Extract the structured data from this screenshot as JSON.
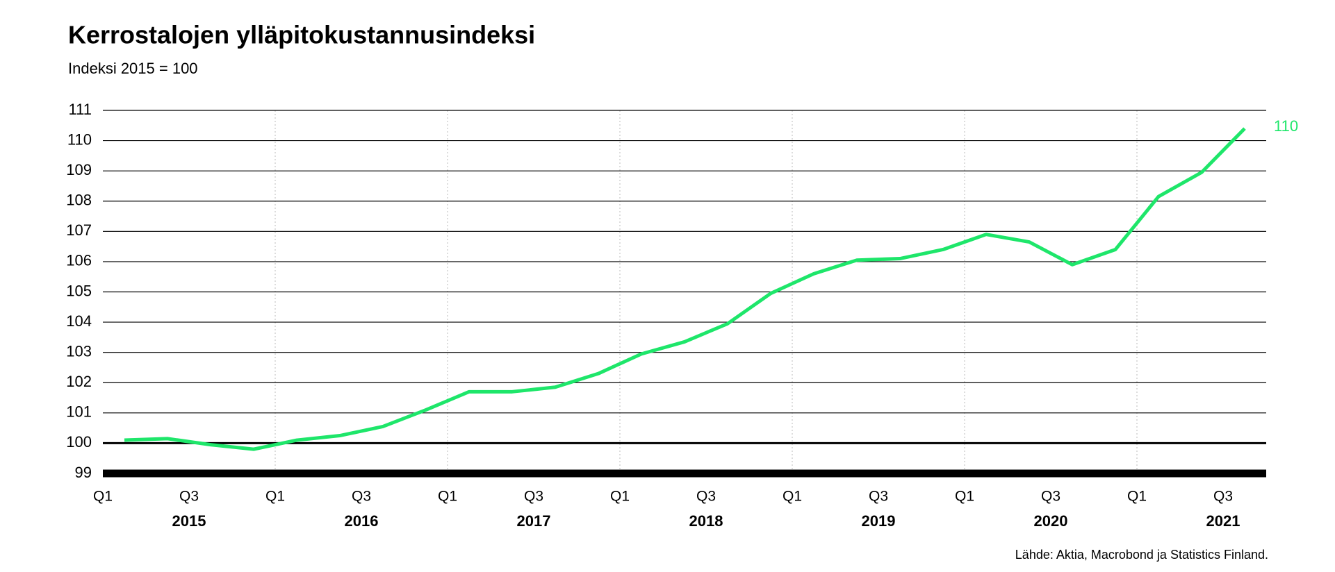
{
  "chart_data": {
    "type": "line",
    "title": "Kerrostalojen ylläpitokustannusindeksi",
    "subtitle": "Indeksi 2015 = 100",
    "source": "Lähde: Aktia, Macrobond ja Statistics Finland.",
    "xtick_labels": [
      "Q1",
      "Q3",
      "Q1",
      "Q3",
      "Q1",
      "Q3",
      "Q1",
      "Q3",
      "Q1",
      "Q3",
      "Q1",
      "Q3",
      "Q1",
      "Q3"
    ],
    "year_labels": [
      "2015",
      "2016",
      "2017",
      "2018",
      "2019",
      "2020",
      "2021"
    ],
    "values": [
      100.1,
      100.15,
      99.95,
      99.8,
      100.1,
      100.25,
      100.55,
      101.1,
      101.7,
      101.7,
      101.85,
      102.3,
      102.95,
      103.35,
      103.95,
      104.95,
      105.6,
      106.05,
      106.1,
      106.4,
      106.9,
      106.65,
      105.9,
      106.4,
      108.15,
      108.95,
      110.4
    ],
    "end_label": "110",
    "color": "#1ee66a",
    "ylim": [
      99,
      111
    ],
    "yticks": [
      99,
      100,
      101,
      102,
      103,
      104,
      105,
      106,
      107,
      108,
      109,
      110,
      111
    ],
    "grid": true
  }
}
